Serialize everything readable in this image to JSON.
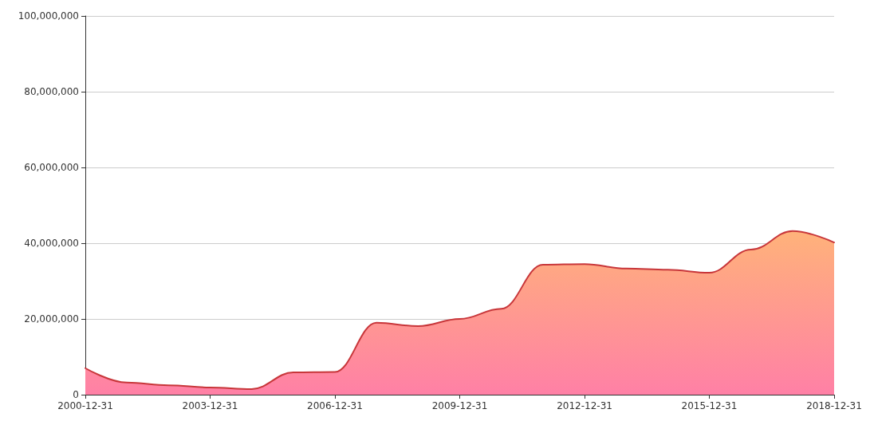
{
  "chart_data": {
    "type": "area",
    "x": [
      "2000-12-31",
      "2001-12-31",
      "2002-12-31",
      "2003-12-31",
      "2004-12-31",
      "2005-12-31",
      "2006-12-31",
      "2007-12-31",
      "2008-12-31",
      "2009-12-31",
      "2010-12-31",
      "2011-12-31",
      "2012-12-31",
      "2013-12-31",
      "2014-12-31",
      "2015-12-31",
      "2016-12-31",
      "2017-12-31",
      "2018-12-31"
    ],
    "series": [
      {
        "color": "#c8363a",
        "values": [
          7000000,
          3200000,
          2500000,
          1900000,
          1500000,
          5900000,
          6000000,
          19000000,
          18100000,
          20000000,
          22700000,
          34300000,
          34500000,
          33300000,
          33000000,
          32200000,
          38300000,
          43200000,
          40200000
        ]
      }
    ],
    "xlim": [
      "2000-12-31",
      "2018-12-31"
    ],
    "xticks": [
      "2000-12-31",
      "2003-12-31",
      "2006-12-31",
      "2009-12-31",
      "2012-12-31",
      "2015-12-31",
      "2018-12-31"
    ],
    "ylim": [
      0,
      100000000
    ],
    "yticks": [
      0,
      {
        "value": 20000000,
        "label": "20,000,000"
      },
      {
        "value": 40000000,
        "label": "40,000,000"
      },
      {
        "value": 60000000,
        "label": "60,000,000"
      },
      {
        "value": 80000000,
        "label": "80,000,000"
      },
      {
        "value": 100000000,
        "label": "100,000,000"
      }
    ],
    "grid": "y",
    "marker": "none",
    "line_style": "solid"
  }
}
